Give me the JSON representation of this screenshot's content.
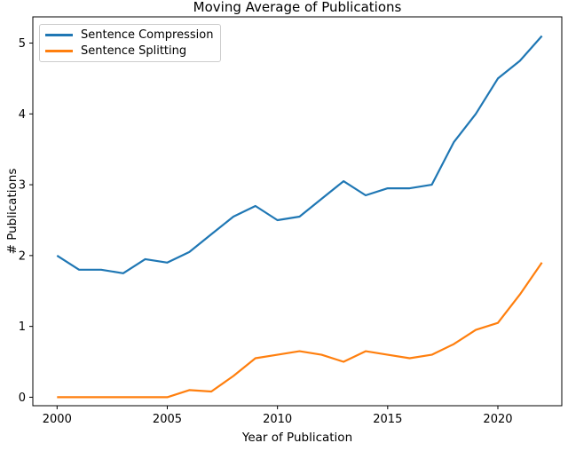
{
  "chart_data": {
    "type": "line",
    "title": "Moving Average of Publications",
    "xlabel": "Year of Publication",
    "ylabel": "# Publications",
    "x": [
      2000,
      2001,
      2002,
      2003,
      2004,
      2005,
      2006,
      2007,
      2008,
      2009,
      2010,
      2011,
      2012,
      2013,
      2014,
      2015,
      2016,
      2017,
      2018,
      2019,
      2020,
      2021,
      2022
    ],
    "series": [
      {
        "name": "Sentence Compression",
        "color": "#1f77b4",
        "values": [
          2.0,
          1.8,
          1.8,
          1.75,
          1.95,
          1.9,
          2.05,
          2.3,
          2.55,
          2.7,
          2.5,
          2.55,
          2.8,
          3.05,
          2.85,
          2.95,
          2.95,
          3.0,
          3.6,
          4.0,
          4.5,
          4.75,
          5.1
        ]
      },
      {
        "name": "Sentence Splitting",
        "color": "#ff7f0e",
        "values": [
          0.0,
          0.0,
          0.0,
          0.0,
          0.0,
          0.0,
          0.1,
          0.08,
          0.3,
          0.55,
          0.6,
          0.65,
          0.6,
          0.5,
          0.65,
          0.6,
          0.55,
          0.6,
          0.75,
          0.95,
          1.05,
          1.45,
          1.9
        ]
      }
    ],
    "xticks": [
      2000,
      2005,
      2010,
      2015,
      2020
    ],
    "yticks": [
      0,
      1,
      2,
      3,
      4,
      5
    ],
    "xlim": [
      1998.9,
      2022.9
    ],
    "ylim": [
      -0.12,
      5.37
    ],
    "grid": false,
    "legend_position": "upper left",
    "line_width": 2.2,
    "spine_color": "#000000",
    "background_color": "#ffffff"
  }
}
